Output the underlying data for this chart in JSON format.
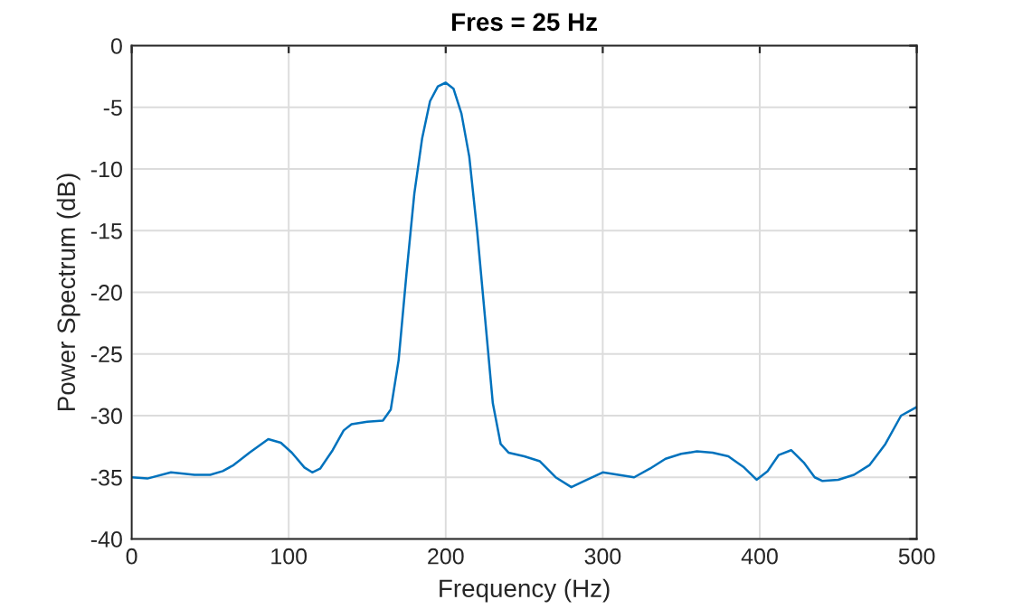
{
  "chart_data": {
    "type": "line",
    "title": "Fres = 25 Hz",
    "xlabel": "Frequency (Hz)",
    "ylabel": "Power Spectrum (dB)",
    "series": [
      {
        "color": "#0072bd",
        "x": [
          0,
          10,
          25,
          40,
          50,
          58,
          65,
          75,
          87,
          95,
          102,
          110,
          115,
          120,
          128,
          135,
          140,
          150,
          160,
          165,
          170,
          175,
          180,
          185,
          190,
          195,
          200,
          205,
          210,
          215,
          220,
          225,
          230,
          235,
          240,
          250,
          260,
          270,
          280,
          290,
          300,
          310,
          320,
          330,
          340,
          350,
          360,
          370,
          380,
          390,
          398,
          405,
          412,
          420,
          428,
          435,
          440,
          450,
          460,
          470,
          480,
          490,
          500
        ],
        "values": [
          -35.0,
          -35.1,
          -34.6,
          -34.8,
          -34.8,
          -34.5,
          -34.0,
          -33.0,
          -31.9,
          -32.2,
          -33.0,
          -34.2,
          -34.6,
          -34.3,
          -32.8,
          -31.2,
          -30.7,
          -30.5,
          -30.4,
          -29.5,
          -25.5,
          -18.5,
          -12.0,
          -7.5,
          -4.5,
          -3.3,
          -3.0,
          -3.5,
          -5.5,
          -9.0,
          -15.0,
          -22.0,
          -29.0,
          -32.3,
          -33.0,
          -33.3,
          -33.7,
          -35.0,
          -35.8,
          -35.2,
          -34.6,
          -34.8,
          -35.0,
          -34.3,
          -33.5,
          -33.1,
          -32.9,
          -33.0,
          -33.3,
          -34.2,
          -35.2,
          -34.5,
          -33.2,
          -32.8,
          -33.8,
          -35.0,
          -35.3,
          -35.2,
          -34.8,
          -34.0,
          -32.3,
          -30.0,
          -29.3
        ]
      }
    ],
    "xlim": [
      0,
      500
    ],
    "xticks": [
      0,
      100,
      200,
      300,
      400,
      500
    ],
    "ylim": [
      -40,
      0
    ],
    "yticks": [
      -40,
      -35,
      -30,
      -25,
      -20,
      -15,
      -10,
      -5,
      0
    ],
    "grid": true
  }
}
